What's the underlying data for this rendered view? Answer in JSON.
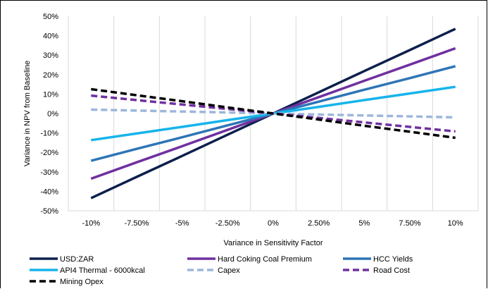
{
  "chart_data": {
    "type": "line",
    "title": "",
    "xlabel": "Variance in Sensitivity Factor",
    "ylabel": "Variance in NPV from Baseline",
    "categories": [
      "-10%",
      "-7.50%",
      "-5%",
      "-2.50%",
      "0%",
      "2.50%",
      "5%",
      "7.50%",
      "10%"
    ],
    "ylim": [
      -50,
      50
    ],
    "yticks": [
      50,
      40,
      30,
      20,
      10,
      0,
      -10,
      -20,
      -30,
      -40,
      -50
    ],
    "ytick_labels": [
      "50%",
      "40%",
      "30%",
      "20%",
      "10%",
      "0%",
      "-10%",
      "-20%",
      "-30%",
      "-40%",
      "-50%"
    ],
    "grid": "vertical",
    "legend_position": "bottom",
    "series": [
      {
        "name": "USD:ZAR",
        "color": "#0d1f4c",
        "dash": "solid",
        "values": [
          -43.5,
          -32.6,
          -21.8,
          -10.9,
          0,
          10.9,
          21.8,
          32.6,
          43.5
        ]
      },
      {
        "name": "Hard Coking Coal Premium",
        "color": "#7030a0",
        "dash": "solid",
        "values": [
          -33.5,
          -25.1,
          -16.8,
          -8.4,
          0,
          8.4,
          16.8,
          25.1,
          33.5
        ]
      },
      {
        "name": "HCC Yields",
        "color": "#2e75b6",
        "dash": "solid",
        "values": [
          -24.3,
          -18.2,
          -12.2,
          -6.1,
          0,
          6.1,
          12.2,
          18.2,
          24.3
        ]
      },
      {
        "name": "API4 Thermal - 6000kcal",
        "color": "#16b4ea",
        "dash": "solid",
        "values": [
          -13.7,
          -10.3,
          -6.9,
          -3.4,
          0,
          3.4,
          6.9,
          10.3,
          13.7
        ]
      },
      {
        "name": "Capex",
        "color": "#9db6dc",
        "dash": "dashed",
        "values": [
          2.0,
          1.5,
          1.0,
          0.5,
          0,
          -0.5,
          -1.0,
          -1.5,
          -2.0
        ]
      },
      {
        "name": "Road Cost",
        "color": "#7030a0",
        "dash": "dashed",
        "values": [
          9.2,
          6.9,
          4.6,
          2.3,
          0,
          -2.3,
          -4.6,
          -6.9,
          -9.2
        ]
      },
      {
        "name": "Mining Opex",
        "color": "#000000",
        "dash": "dashed",
        "values": [
          12.5,
          9.4,
          6.3,
          3.1,
          0,
          -3.1,
          -6.3,
          -9.4,
          -12.5
        ]
      }
    ]
  }
}
